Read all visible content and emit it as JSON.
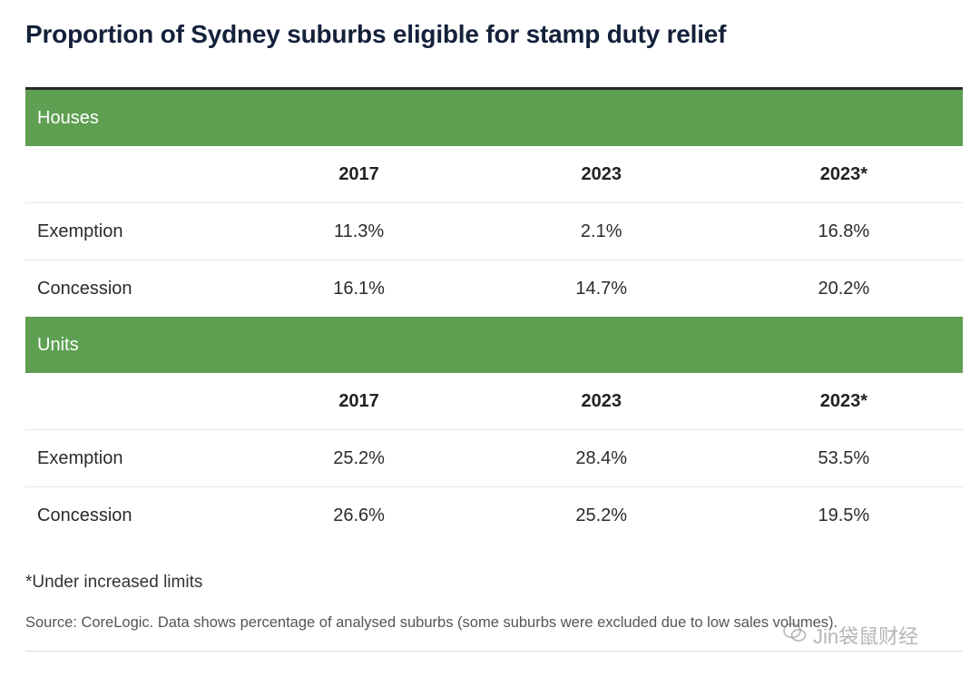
{
  "title": "Proportion of Sydney suburbs eligible for stamp duty relief",
  "sections": [
    {
      "name": "Houses",
      "columns": [
        "2017",
        "2023",
        "2023*"
      ],
      "rows": [
        {
          "label": "Exemption",
          "values": [
            "11.3%",
            "2.1%",
            "16.8%"
          ]
        },
        {
          "label": "Concession",
          "values": [
            "16.1%",
            "14.7%",
            "20.2%"
          ]
        }
      ]
    },
    {
      "name": "Units",
      "columns": [
        "2017",
        "2023",
        "2023*"
      ],
      "rows": [
        {
          "label": "Exemption",
          "values": [
            "25.2%",
            "28.4%",
            "53.5%"
          ]
        },
        {
          "label": "Concession",
          "values": [
            "26.6%",
            "25.2%",
            "19.5%"
          ]
        }
      ]
    }
  ],
  "footnote": "*Under increased limits",
  "source": "Source: CoreLogic. Data shows percentage of analysed suburbs (some suburbs were excluded due to low sales volumes).",
  "watermark": "Jin袋鼠财经",
  "colors": {
    "section_header": "#5e9f52",
    "title": "#14213a"
  }
}
